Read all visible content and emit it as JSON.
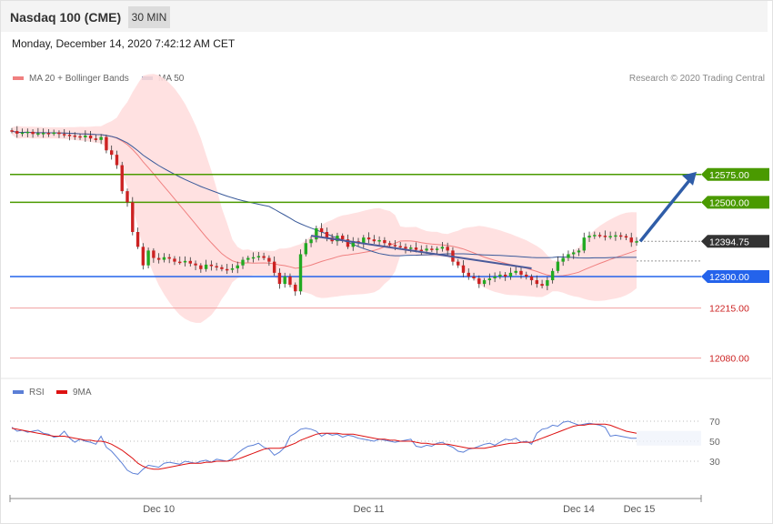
{
  "header": {
    "title": "Nasdaq 100 (CME)",
    "timeframe": "30 MIN"
  },
  "timestamp": "Monday, December 14, 2020 7:42:12 AM CET",
  "legend": {
    "ma20": "MA 20 + Bollinger Bands",
    "ma50": "MA 50",
    "rsi": "RSI",
    "rsi_ma": "9MA"
  },
  "credit": "Research © 2020 Trading Central",
  "colors": {
    "support": "#2463eb",
    "resistance": "#4a9a00",
    "bb": "#ffdede",
    "ma20": "#f08080",
    "ma50": "#3a5a9a",
    "candle_up": "#22aa22",
    "candle_down": "#cc2222",
    "arrow": "#2f5da8",
    "rsi": "#5b7fd6",
    "rsi_ma": "#dd1111"
  },
  "chart_data": {
    "type": "candlestick",
    "ylim": [
      12040,
      12800
    ],
    "x_ticks": [
      "Dec 10",
      "Dec 11",
      "Dec 14",
      "Dec 15"
    ],
    "levels": [
      {
        "label": "12575.00",
        "value": 12575.0,
        "kind": "resistance"
      },
      {
        "label": "12500.00",
        "value": 12500.0,
        "kind": "resistance"
      },
      {
        "label": "12394.75",
        "value": 12394.75,
        "kind": "last"
      },
      {
        "label": "12300.00",
        "value": 12300.0,
        "kind": "support"
      },
      {
        "label": "12215.00",
        "value": 12215.0,
        "kind": "red"
      },
      {
        "label": "12080.00",
        "value": 12080.0,
        "kind": "red"
      }
    ],
    "closes": [
      12692,
      12685,
      12688,
      12690,
      12684,
      12686,
      12687,
      12685,
      12688,
      12684,
      12682,
      12680,
      12678,
      12675,
      12680,
      12672,
      12668,
      12676,
      12640,
      12628,
      12600,
      12530,
      12500,
      12420,
      12380,
      12330,
      12370,
      12350,
      12345,
      12352,
      12348,
      12340,
      12338,
      12342,
      12335,
      12330,
      12320,
      12332,
      12328,
      12325,
      12320,
      12318,
      12322,
      12330,
      12345,
      12350,
      12352,
      12355,
      12350,
      12340,
      12310,
      12280,
      12300,
      12278,
      12260,
      12360,
      12390,
      12400,
      12430,
      12420,
      12405,
      12395,
      12410,
      12400,
      12380,
      12395,
      12390,
      12405,
      12400,
      12395,
      12398,
      12390,
      12385,
      12382,
      12380,
      12375,
      12378,
      12372,
      12370,
      12375,
      12372,
      12375,
      12380,
      12370,
      12340,
      12330,
      12310,
      12300,
      12295,
      12280,
      12290,
      12295,
      12300,
      12305,
      12300,
      12310,
      12315,
      12305,
      12300,
      12290,
      12280,
      12275,
      12290,
      12315,
      12340,
      12350,
      12360,
      12365,
      12370,
      12405,
      12410,
      12412,
      12410,
      12408,
      12409,
      12411,
      12409,
      12405,
      12392,
      12395
    ],
    "rsi": {
      "ylim": [
        0,
        100
      ],
      "levels": [
        70,
        50,
        30
      ],
      "rsi": [
        64,
        60,
        61,
        59,
        60,
        61,
        58,
        57,
        54,
        55,
        60,
        53,
        49,
        52,
        50,
        49,
        47,
        55,
        44,
        40,
        34,
        28,
        21,
        18,
        17,
        22,
        26,
        25,
        24,
        28,
        29,
        28,
        27,
        30,
        29,
        28,
        30,
        31,
        29,
        32,
        31,
        30,
        33,
        38,
        42,
        45,
        46,
        48,
        44,
        42,
        36,
        39,
        44,
        55,
        58,
        62,
        63,
        62,
        60,
        55,
        58,
        56,
        57,
        54,
        56,
        55,
        53,
        52,
        51,
        50,
        52,
        51,
        50,
        49,
        50,
        51,
        52,
        45,
        44,
        46,
        45,
        48,
        49,
        46,
        44,
        40,
        39,
        42,
        43,
        45,
        47,
        48,
        46,
        49,
        52,
        51,
        53,
        49,
        50,
        47,
        58,
        62,
        63,
        66,
        65,
        69,
        70,
        68,
        66,
        67,
        68,
        67,
        66,
        64,
        55,
        56,
        55,
        54,
        53,
        53
      ],
      "ma9": [
        63,
        62,
        61,
        60,
        59,
        58,
        57,
        56,
        55,
        55,
        55,
        54,
        53,
        52,
        51,
        51,
        50,
        50,
        49,
        47,
        44,
        41,
        37,
        33,
        28,
        25,
        23,
        22,
        22,
        23,
        24,
        25,
        26,
        27,
        28,
        28,
        28,
        29,
        29,
        30,
        30,
        30,
        31,
        32,
        34,
        36,
        38,
        40,
        42,
        43,
        43,
        43,
        44,
        46,
        48,
        51,
        53,
        55,
        57,
        58,
        58,
        58,
        58,
        57,
        57,
        57,
        56,
        55,
        54,
        53,
        52,
        52,
        51,
        51,
        50,
        50,
        50,
        49,
        48,
        48,
        47,
        47,
        47,
        47,
        46,
        45,
        44,
        43,
        43,
        43,
        43,
        44,
        45,
        46,
        47,
        48,
        48,
        49,
        49,
        49,
        51,
        53,
        55,
        57,
        59,
        61,
        63,
        65,
        66,
        66,
        67,
        67,
        67,
        67,
        66,
        64,
        62,
        60,
        59,
        58
      ]
    }
  }
}
